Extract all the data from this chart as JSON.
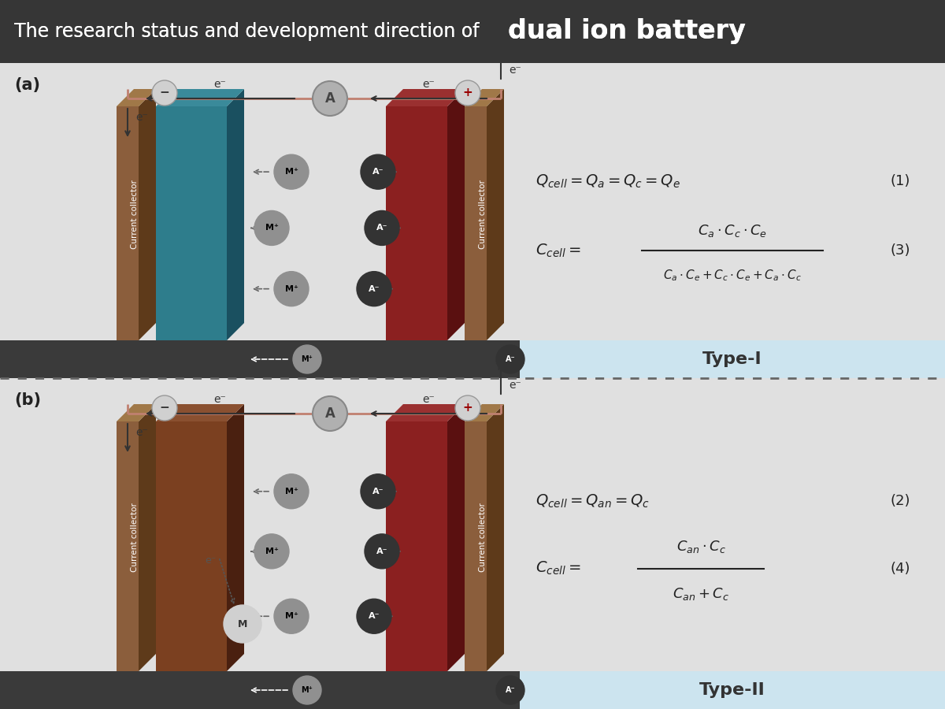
{
  "title_regular": "The research status and development direction of ",
  "title_bold": "dual ion battery",
  "title_bg": "#363636",
  "title_fg": "#ffffff",
  "panel_bg": "#e0e0e0",
  "dark_strip_color": "#3a3a3a",
  "type1_bg": "#cce4ef",
  "type2_bg": "#cce4ef",
  "label_a": "(a)",
  "label_b": "(b)",
  "type1_label": "Type-I",
  "type2_label": "Type-II",
  "wire_color": "#c08070",
  "cc_face": "#8B5E3C",
  "cc_side": "#5E3A1A",
  "cc_top": "#A07848",
  "elec_teal_face": "#2E7D8C",
  "elec_teal_side": "#1A5060",
  "elec_teal_top": "#3A8A9A",
  "elec_red_face": "#8B2020",
  "elec_red_side": "#5A1010",
  "elec_red_top": "#9A3030",
  "elec_brown_face": "#7B4020",
  "elec_brown_side": "#4A2010",
  "elec_brown_top": "#8A5030"
}
